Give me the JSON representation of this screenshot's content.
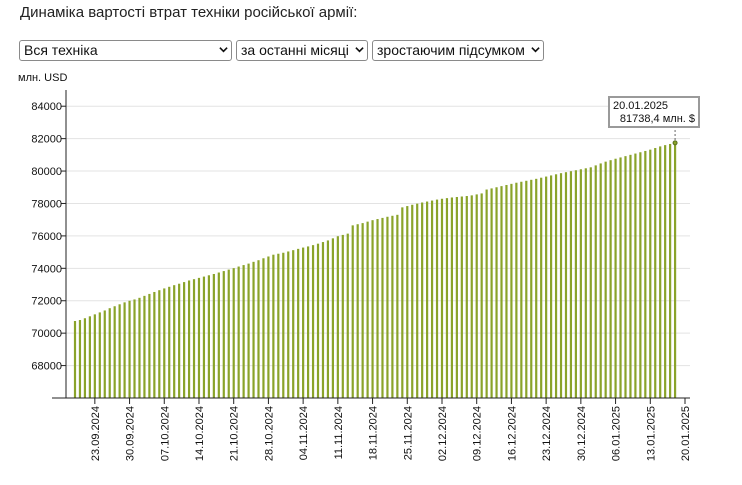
{
  "page": {
    "title": "Динаміка вартості втрат техніки російської армії:"
  },
  "controls": {
    "category": "Вся техніка",
    "period": "за останні місяці",
    "mode": "зростаючим підсумком"
  },
  "tooltip": {
    "date": "20.01.2025",
    "value": "81738,4 млн. $"
  },
  "colors": {
    "bar": "#8aa32a",
    "grid": "#e3e3e3",
    "axis": "#222222"
  },
  "chart_data": {
    "type": "bar",
    "ylabel": "млн. USD",
    "ylim": [
      66000,
      85000
    ],
    "yticks": [
      68000,
      70000,
      72000,
      74000,
      76000,
      78000,
      80000,
      82000,
      84000
    ],
    "date_ticks": [
      "23.09.2024",
      "30.09.2024",
      "07.10.2024",
      "14.10.2024",
      "21.10.2024",
      "28.10.2024",
      "04.11.2024",
      "11.11.2024",
      "18.11.2024",
      "25.11.2024",
      "02.12.2024",
      "09.12.2024",
      "16.12.2024",
      "23.12.2024",
      "30.12.2024",
      "06.01.2025",
      "13.01.2025",
      "20.01.2025"
    ],
    "first_date": "19.09.2024",
    "last_date": "20.01.2025",
    "values": [
      70750,
      70810,
      70920,
      71040,
      71160,
      71280,
      71400,
      71540,
      71660,
      71780,
      71900,
      72000,
      72080,
      72180,
      72300,
      72420,
      72540,
      72650,
      72760,
      72860,
      72960,
      73050,
      73150,
      73250,
      73330,
      73410,
      73490,
      73570,
      73650,
      73740,
      73830,
      73920,
      74010,
      74110,
      74200,
      74290,
      74400,
      74500,
      74620,
      74730,
      74840,
      74900,
      74960,
      75040,
      75120,
      75200,
      75280,
      75350,
      75430,
      75520,
      75620,
      75720,
      75850,
      75980,
      76060,
      76140,
      76650,
      76720,
      76790,
      76880,
      76970,
      77040,
      77110,
      77180,
      77240,
      77300,
      77760,
      77840,
      77920,
      77990,
      78060,
      78120,
      78180,
      78240,
      78290,
      78330,
      78370,
      78400,
      78430,
      78460,
      78500,
      78560,
      78620,
      78860,
      78930,
      79000,
      79070,
      79140,
      79210,
      79280,
      79340,
      79400,
      79460,
      79520,
      79590,
      79660,
      79730,
      79800,
      79870,
      79930,
      79990,
      80050,
      80110,
      80170,
      80230,
      80350,
      80470,
      80580,
      80670,
      80760,
      80840,
      80920,
      81000,
      81080,
      81160,
      81240,
      81320,
      81420,
      81520,
      81600,
      81670,
      81738.4
    ]
  }
}
